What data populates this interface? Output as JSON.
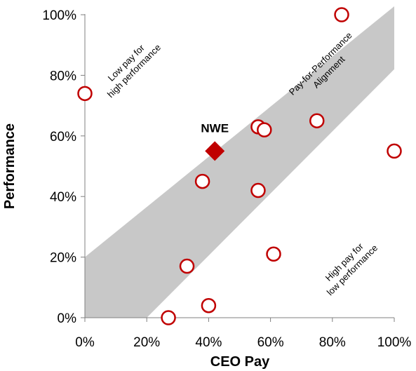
{
  "chart_data": {
    "type": "scatter",
    "xlabel": "CEO Pay",
    "ylabel": "Performance",
    "xlim": [
      0,
      100
    ],
    "ylim": [
      0,
      100
    ],
    "x_ticks": [
      "0%",
      "20%",
      "40%",
      "60%",
      "80%",
      "100%"
    ],
    "y_ticks": [
      "0%",
      "20%",
      "40%",
      "60%",
      "80%",
      "100%"
    ],
    "grid": false,
    "band": {
      "label": "Pay-for-Performance Alignment",
      "lower_line": [
        [
          20,
          0
        ],
        [
          100,
          82
        ]
      ],
      "upper_line": [
        [
          0,
          20
        ],
        [
          100,
          102
        ]
      ],
      "color": "#c8c8c8"
    },
    "region_labels": {
      "top_left": "Low pay for high performance",
      "bottom_right": "High pay for low performance"
    },
    "points": [
      {
        "x": 0,
        "y": 74
      },
      {
        "x": 27,
        "y": 0
      },
      {
        "x": 33,
        "y": 17
      },
      {
        "x": 40,
        "y": 4
      },
      {
        "x": 38,
        "y": 45
      },
      {
        "x": 56,
        "y": 42
      },
      {
        "x": 56,
        "y": 63
      },
      {
        "x": 58,
        "y": 62
      },
      {
        "x": 61,
        "y": 21
      },
      {
        "x": 75,
        "y": 65
      },
      {
        "x": 83,
        "y": 100
      },
      {
        "x": 100,
        "y": 55
      }
    ],
    "highlight": {
      "label": "NWE",
      "x": 42,
      "y": 55
    },
    "colors": {
      "marker_edge": "#c00000",
      "marker_fill": "#ffffff",
      "highlight": "#c00000",
      "band": "#c8c8c8"
    }
  }
}
